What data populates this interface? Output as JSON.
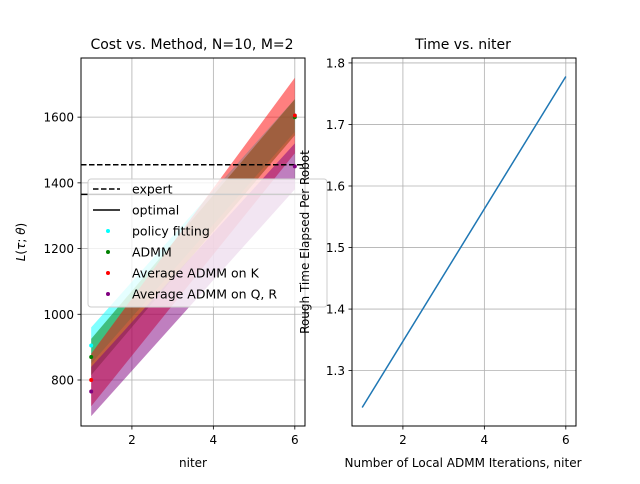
{
  "chart_data": [
    {
      "type": "line",
      "title": "Cost vs. Method, N=10, M=2",
      "xlabel": "niter",
      "ylabel": "L(τ; θ)",
      "xlim": [
        0.75,
        6.25
      ],
      "ylim": [
        660,
        1780
      ],
      "xticks": [
        2,
        4,
        6
      ],
      "yticks": [
        800,
        1000,
        1200,
        1400,
        1600
      ],
      "grid": true,
      "legend_position": "center-left",
      "reference_lines": [
        {
          "name": "expert",
          "style": "dashed",
          "color": "#000000",
          "y": 1455
        },
        {
          "name": "optimal",
          "style": "solid",
          "color": "#000000",
          "y": 1365
        }
      ],
      "series": [
        {
          "name": "policy fitting",
          "color": "#00ffff",
          "marker": "dot",
          "x": [
            1,
            6
          ],
          "mean": [
            905,
            1605
          ],
          "lower": [
            850,
            1555
          ],
          "upper": [
            960,
            1655
          ]
        },
        {
          "name": "ADMM",
          "color": "#008000",
          "marker": "dot",
          "x": [
            1,
            6
          ],
          "mean": [
            870,
            1600
          ],
          "lower": [
            815,
            1545
          ],
          "upper": [
            925,
            1655
          ]
        },
        {
          "name": "Average ADMM on K",
          "color": "#ff0000",
          "marker": "dot",
          "x": [
            1,
            6
          ],
          "mean": [
            800,
            1605
          ],
          "lower": [
            720,
            1490
          ],
          "upper": [
            880,
            1720
          ]
        },
        {
          "name": "Average ADMM on Q, R",
          "color": "#800080",
          "marker": "dot",
          "x": [
            1,
            6
          ],
          "mean": [
            765,
            1450
          ],
          "lower": [
            690,
            1380
          ],
          "upper": [
            840,
            1520
          ]
        }
      ]
    },
    {
      "type": "line",
      "title": "Time vs. niter",
      "xlabel": "Number of Local ADMM Iterations, niter",
      "ylabel": "Rough Time Elapsed Per Robot",
      "xlim": [
        0.75,
        6.25
      ],
      "ylim": [
        1.21,
        1.808
      ],
      "xticks": [
        2,
        4,
        6
      ],
      "yticks": [
        1.3,
        1.4,
        1.5,
        1.6,
        1.7,
        1.8
      ],
      "grid": true,
      "series": [
        {
          "name": "",
          "color": "#1f77b4",
          "x": [
            1,
            6
          ],
          "y": [
            1.24,
            1.778
          ]
        }
      ]
    }
  ]
}
